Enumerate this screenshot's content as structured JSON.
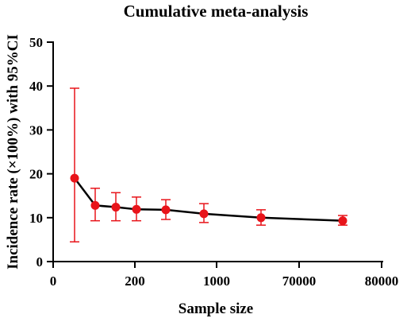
{
  "chart_data": {
    "type": "line",
    "title": "Cumulative meta-analysis",
    "xlabel": "Sample size",
    "ylabel": "Incidence rate (×100%) with 95%CI",
    "x_ticks": [
      "0",
      "200",
      "1000",
      "70000",
      "80000"
    ],
    "y_ticks": [
      "0",
      "10",
      "20",
      "30",
      "40",
      "50"
    ],
    "ylim": [
      0,
      50
    ],
    "grid": false,
    "series": [
      {
        "point_color": "#e8141a",
        "line_color": "#000000",
        "points": [
          {
            "y": 19.0,
            "ci_low": 4.5,
            "ci_high": 39.5
          },
          {
            "y": 12.8,
            "ci_low": 9.3,
            "ci_high": 16.7
          },
          {
            "y": 12.4,
            "ci_low": 9.3,
            "ci_high": 15.7
          },
          {
            "y": 11.9,
            "ci_low": 9.3,
            "ci_high": 14.7
          },
          {
            "y": 11.8,
            "ci_low": 9.6,
            "ci_high": 14.1
          },
          {
            "y": 10.9,
            "ci_low": 8.9,
            "ci_high": 13.2
          },
          {
            "y": 10.0,
            "ci_low": 8.3,
            "ci_high": 11.8
          },
          {
            "y": 9.3,
            "ci_low": 8.3,
            "ci_high": 10.5
          }
        ]
      }
    ]
  }
}
